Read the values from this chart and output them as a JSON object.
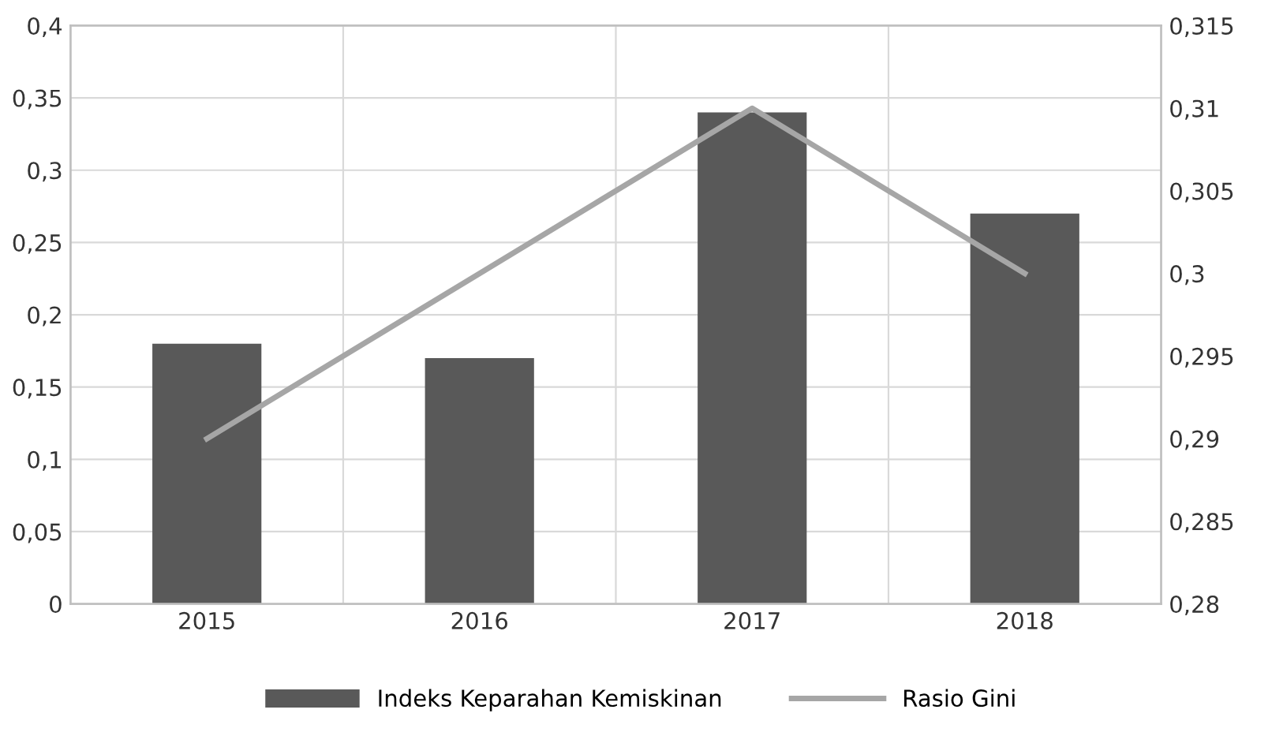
{
  "chart_data": {
    "type": "bar",
    "categories": [
      "2015",
      "2016",
      "2017",
      "2018"
    ],
    "series": [
      {
        "name": "Indeks Keparahan Kemiskinan",
        "type": "bar",
        "color": "#595959",
        "values": [
          0.18,
          0.17,
          0.34,
          0.27
        ]
      },
      {
        "name": "Rasio Gini",
        "type": "line",
        "axis": "y2",
        "color": "#a6a6a6",
        "values": [
          0.29,
          0.3,
          0.31,
          0.3
        ]
      }
    ],
    "ylim": [
      0,
      0.4
    ],
    "yticks": [
      {
        "value": 0,
        "label": "0"
      },
      {
        "value": 0.05,
        "label": "0,05"
      },
      {
        "value": 0.1,
        "label": "0,1"
      },
      {
        "value": 0.15,
        "label": "0,15"
      },
      {
        "value": 0.2,
        "label": "0,2"
      },
      {
        "value": 0.25,
        "label": "0,25"
      },
      {
        "value": 0.3,
        "label": "0,3"
      },
      {
        "value": 0.35,
        "label": "0,35"
      },
      {
        "value": 0.4,
        "label": "0,4"
      }
    ],
    "y2lim": [
      0.28,
      0.315
    ],
    "y2ticks": [
      {
        "value": 0.28,
        "label": "0,28"
      },
      {
        "value": 0.285,
        "label": "0,285"
      },
      {
        "value": 0.29,
        "label": "0,29"
      },
      {
        "value": 0.295,
        "label": "0,295"
      },
      {
        "value": 0.3,
        "label": "0,3"
      },
      {
        "value": 0.305,
        "label": "0,305"
      },
      {
        "value": 0.31,
        "label": "0,31"
      },
      {
        "value": 0.315,
        "label": "0,315"
      }
    ],
    "grid": true,
    "legend": "bottom",
    "marker": "none",
    "line_style": "solid"
  }
}
